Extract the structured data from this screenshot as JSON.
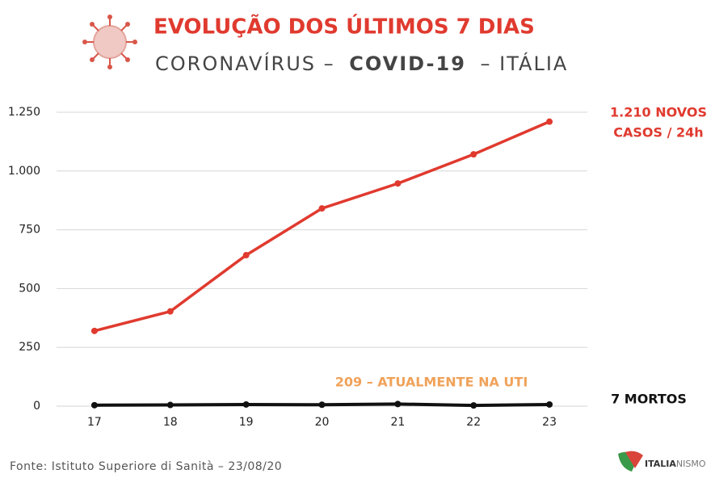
{
  "chart_data": {
    "type": "line",
    "title": "EVOLUÇÃO DOS ÚLTIMOS 7 DIAS",
    "subtitle": [
      "CORONAVÍRUS  –",
      "COVID-19",
      "–  ITÁLIA"
    ],
    "categories": [
      "17",
      "18",
      "19",
      "20",
      "21",
      "22",
      "23"
    ],
    "series": [
      {
        "name": "Novos casos",
        "color": "#e03a2f",
        "values": [
          320,
          403,
          642,
          841,
          947,
          1071,
          1210
        ]
      },
      {
        "name": "Mortos",
        "color": "#111111",
        "values": [
          4,
          5,
          7,
          6,
          9,
          3,
          7
        ]
      }
    ],
    "ylim": [
      0,
      1250
    ],
    "yticks": [
      0,
      250,
      500,
      750,
      {
        "value": 1000,
        "label": "1.000"
      },
      {
        "value": 1250,
        "label": "1.250"
      }
    ],
    "grid": true,
    "annotations": {
      "cases": [
        "1.210 NOVOS",
        "CASOS  / 24h"
      ],
      "deaths": "7 MORTOS",
      "icu": "209 – ATUALMENTE NA UTI"
    },
    "source": "Fonte: Istituto Superiore di Sanità – 23/08/20",
    "logo": [
      "ITALIA",
      "NISMO"
    ]
  }
}
